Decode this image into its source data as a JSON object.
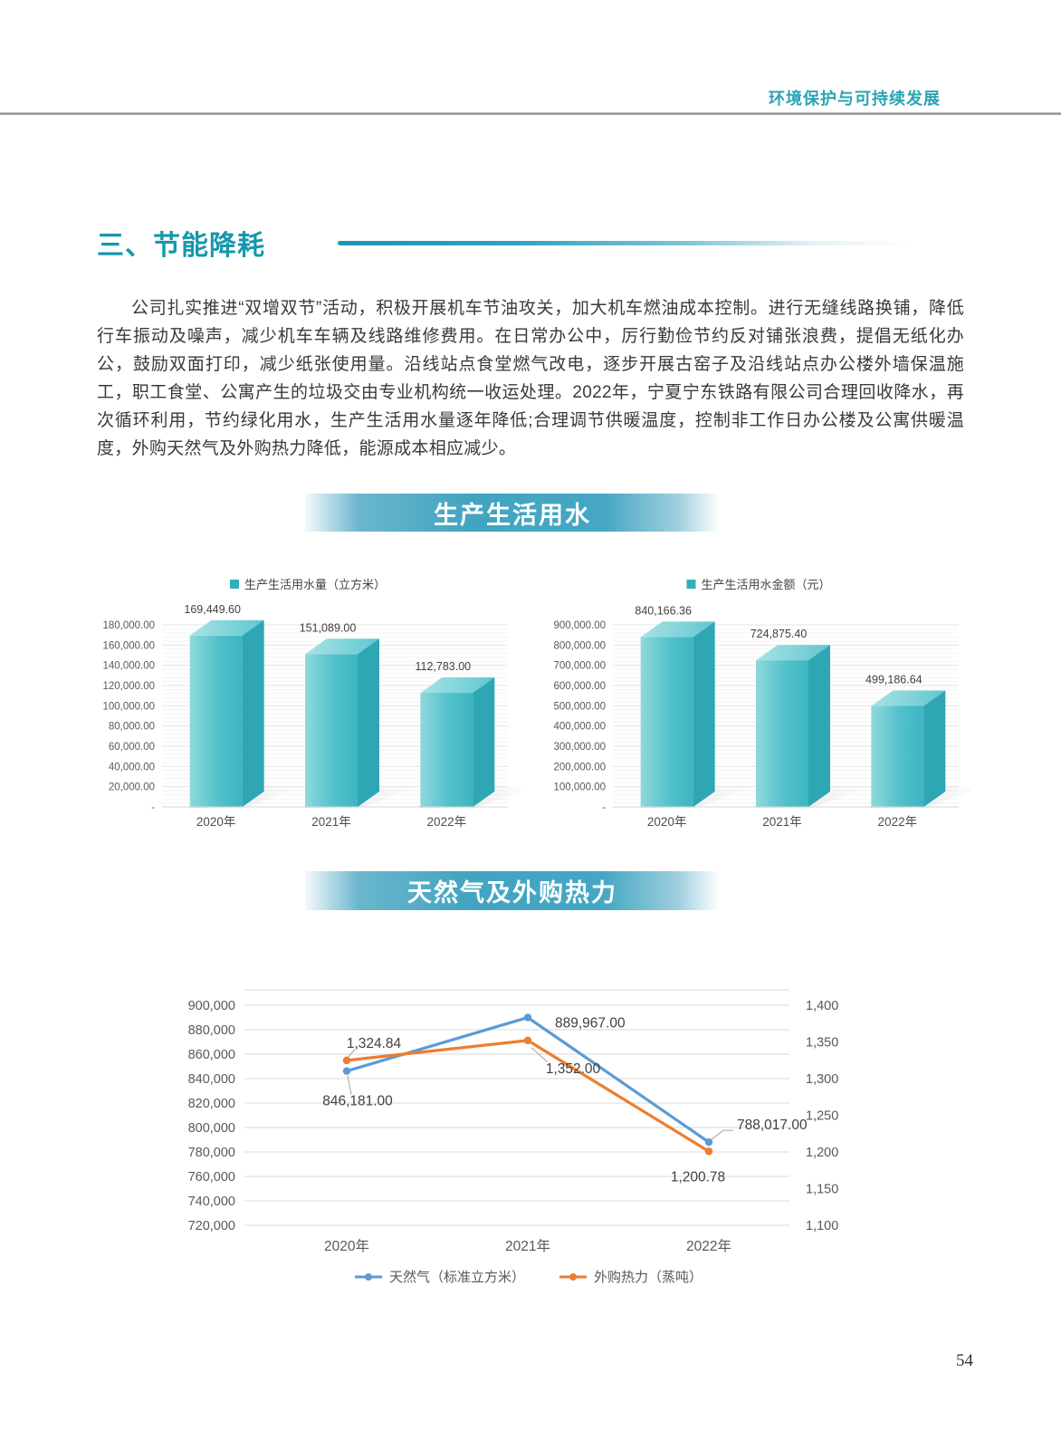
{
  "header": {
    "title": "环境保护与可持续发展"
  },
  "section": {
    "title": "三、节能降耗"
  },
  "paragraph": "公司扎实推进“双增双节”活动，积极开展机车节油攻关，加大机车燃油成本控制。进行无缝线路换铺，降低行车振动及噪声，减少机车车辆及线路维修费用。在日常办公中，厉行勤俭节约反对铺张浪费，提倡无纸化办公，鼓励双面打印，减少纸张使用量。沿线站点食堂燃气改电，逐步开展古窑子及沿线站点办公楼外墙保温施工，职工食堂、公寓产生的垃圾交由专业机构统一收运处理。2022年，宁夏宁东铁路有限公司合理回收降水，再次循环利用，节约绿化用水，生产生活用水量逐年降低;合理调节供暖温度，控制非工作日办公楼及公寓供暖温度，外购天然气及外购热力降低，能源成本相应减少。",
  "banners": {
    "water": "生产生活用水",
    "gas": "天然气及外购热力"
  },
  "page_number": "54",
  "colors": {
    "accent_teal": "#1797AC",
    "banner_teal": "#42A4C0",
    "bar_teal": "#4ABCC8",
    "line_blue": "#5B9BD5",
    "line_orange": "#ED7D31"
  },
  "chart_data": [
    {
      "type": "bar",
      "legend": "生产生活用水量（立方米）",
      "categories": [
        "2020年",
        "2021年",
        "2022年"
      ],
      "values": [
        169449.6,
        151089.0,
        112783.0
      ],
      "value_labels": [
        "169,449.60",
        "151,089.00",
        "112,783.00"
      ],
      "ylim": [
        0,
        180000
      ],
      "ytick_step": 20000,
      "ytick_labels": [
        "180,000.00",
        "160,000.00",
        "140,000.00",
        "120,000.00",
        "100,000.00",
        "80,000.00",
        "60,000.00",
        "40,000.00",
        "20,000.00",
        "-"
      ],
      "grid": true,
      "legend_position": "top"
    },
    {
      "type": "bar",
      "legend": "生产生活用水金额（元）",
      "categories": [
        "2020年",
        "2021年",
        "2022年"
      ],
      "values": [
        840166.36,
        724875.4,
        499186.64
      ],
      "value_labels": [
        "840,166.36",
        "724,875.40",
        "499,186.64"
      ],
      "ylim": [
        0,
        900000
      ],
      "ytick_step": 100000,
      "ytick_labels": [
        "900,000.00",
        "800,000.00",
        "700,000.00",
        "600,000.00",
        "500,000.00",
        "400,000.00",
        "300,000.00",
        "200,000.00",
        "100,000.00",
        "-"
      ],
      "grid": true,
      "legend_position": "top"
    },
    {
      "type": "line",
      "categories": [
        "2020年",
        "2021年",
        "2022年"
      ],
      "series": [
        {
          "name": "天然气（标准立方米）",
          "axis": "left",
          "color": "#5B9BD5",
          "values": [
            846181.0,
            889967.0,
            788017.0
          ],
          "labels": [
            "846,181.00",
            "889,967.00",
            "788,017.00"
          ]
        },
        {
          "name": "外购热力（蒸吨）",
          "axis": "right",
          "color": "#ED7D31",
          "values": [
            1324.84,
            1352.0,
            1200.78
          ],
          "labels": [
            "1,324.84",
            "1,352.00",
            "1,200.78"
          ]
        }
      ],
      "left_axis": {
        "min": 720000,
        "max": 900000,
        "step": 20000,
        "labels": [
          "900,000",
          "880,000",
          "860,000",
          "840,000",
          "820,000",
          "800,000",
          "780,000",
          "760,000",
          "740,000",
          "720,000"
        ]
      },
      "right_axis": {
        "min": 1100,
        "max": 1400,
        "step": 50,
        "labels": [
          "1,400",
          "1,350",
          "1,300",
          "1,250",
          "1,200",
          "1,150",
          "1,100"
        ]
      },
      "grid": true,
      "legend_position": "bottom"
    }
  ]
}
